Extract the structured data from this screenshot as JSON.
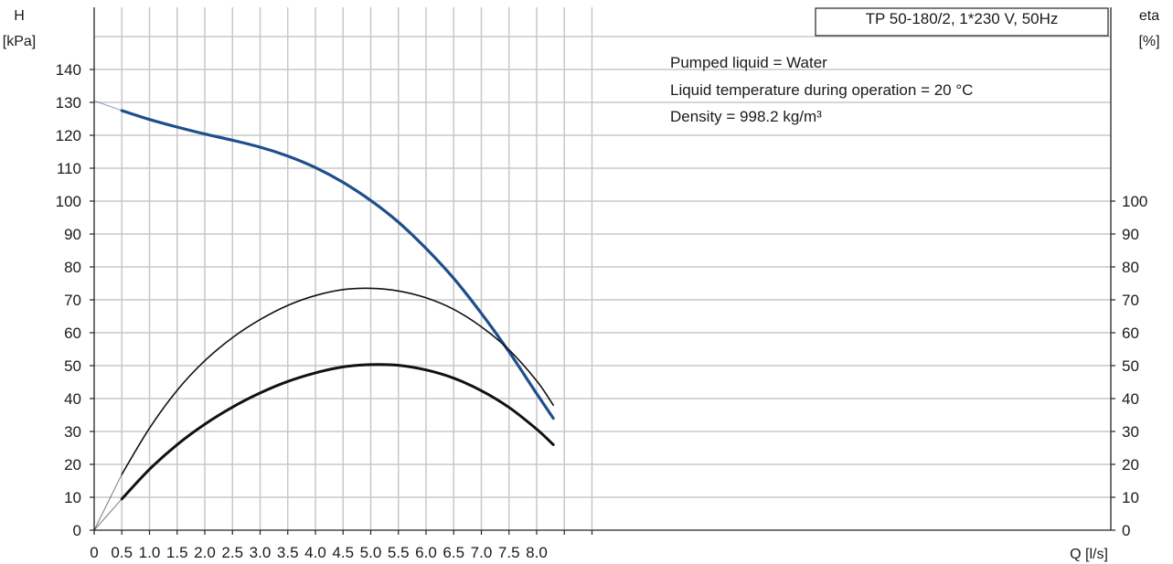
{
  "chart_data": {
    "type": "line",
    "title": "TP 50-180/2, 1*230 V, 50Hz",
    "annotations": [
      "Pumped liquid = Water",
      "Liquid temperature during operation = 20 °C",
      "Density = 998.2 kg/m³"
    ],
    "xlabel": "Q [l/s]",
    "ylabel_left": {
      "line1": "H",
      "line2": "[kPa]"
    },
    "ylabel_right": {
      "line1": "eta",
      "line2": "[%]"
    },
    "xlim": [
      0,
      9.0
    ],
    "ylim_left": [
      0,
      150
    ],
    "ylim_right": [
      0,
      150
    ],
    "x_ticks": [
      "0",
      "0.5",
      "1.0",
      "1.5",
      "2.0",
      "2.5",
      "3.0",
      "3.5",
      "4.0",
      "4.5",
      "5.0",
      "5.5",
      "6.0",
      "6.5",
      "7.0",
      "7.5",
      "8.0"
    ],
    "y_ticks_left": [
      "0",
      "10",
      "20",
      "30",
      "40",
      "50",
      "60",
      "70",
      "80",
      "90",
      "100",
      "110",
      "120",
      "130",
      "140"
    ],
    "y_ticks_right": [
      "0",
      "10",
      "20",
      "30",
      "40",
      "50",
      "60",
      "70",
      "80",
      "90",
      "100"
    ],
    "grid": true,
    "series": [
      {
        "axis": "left",
        "color": "#1f4e8c",
        "x": [
          0,
          0.5,
          1.0,
          1.5,
          2.0,
          2.5,
          3.0,
          3.5,
          4.0,
          4.5,
          5.0,
          5.5,
          6.0,
          6.5,
          7.0,
          7.5,
          8.0,
          8.3
        ],
        "values": [
          130.5,
          127.5,
          124.8,
          122.5,
          120.4,
          118.5,
          116.4,
          113.7,
          110.2,
          105.7,
          100.2,
          93.6,
          85.6,
          76.5,
          65.9,
          54.2,
          41.5,
          34.0
        ]
      },
      {
        "axis": "right",
        "color": "#111111",
        "x": [
          0,
          0.5,
          1.0,
          1.5,
          2.0,
          2.5,
          3.0,
          3.5,
          4.0,
          4.5,
          5.0,
          5.5,
          6.0,
          6.5,
          7.0,
          7.5,
          8.0,
          8.3
        ],
        "values": [
          0,
          17,
          31,
          42.5,
          51.5,
          58.5,
          64,
          68.3,
          71.3,
          73.1,
          73.5,
          72.7,
          70.6,
          67.1,
          61.8,
          54.8,
          45.4,
          38
        ]
      },
      {
        "axis": "right",
        "color": "#111111",
        "x": [
          0,
          0.5,
          1.0,
          1.5,
          2.0,
          2.5,
          3.0,
          3.5,
          4.0,
          4.5,
          5.0,
          5.5,
          6.0,
          6.5,
          7.0,
          7.5,
          8.0,
          8.3
        ],
        "values": [
          0,
          9.5,
          18.5,
          26,
          32.2,
          37.4,
          41.7,
          45.2,
          47.8,
          49.6,
          50.3,
          50.1,
          48.7,
          46.2,
          42.4,
          37.3,
          30.7,
          26
        ]
      }
    ]
  }
}
